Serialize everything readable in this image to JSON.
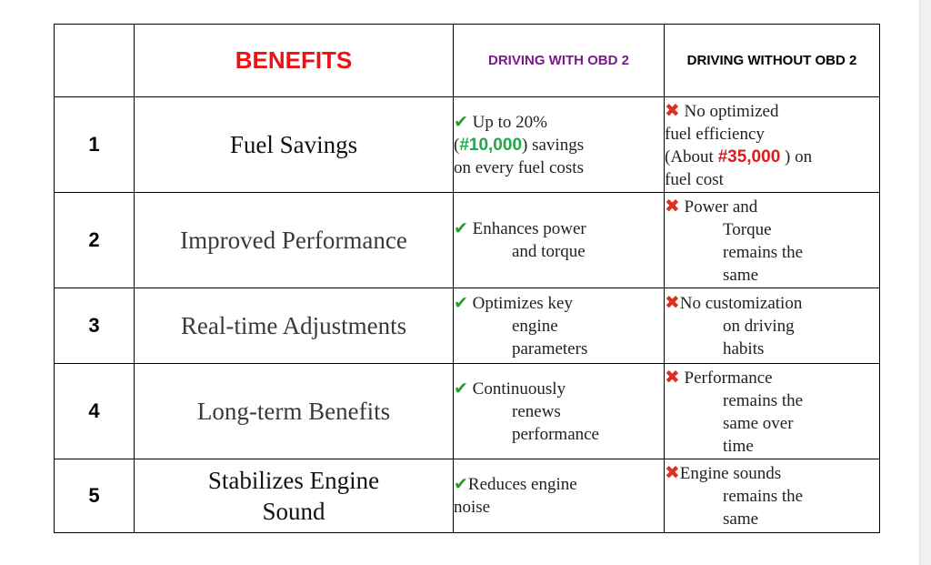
{
  "header": {
    "benefits": "BENEFITS",
    "with_obd": "DRIVING WITH OBD 2",
    "without_obd": "DRIVING WITHOUT OBD 2"
  },
  "icons": {
    "check": "✔",
    "cross": "✖"
  },
  "colors": {
    "check": "#2a9d2a",
    "cross": "#d9321e",
    "benefits_header": "#ee1111",
    "with_header": "#7a1a8c",
    "highlight_green": "#22a84a",
    "highlight_red": "#e01a1a"
  },
  "rows": [
    {
      "num": "1",
      "benefit": "Fuel Savings",
      "with_pre": "Up to 20%",
      "with_open": "(",
      "with_hl": "#10,000",
      "with_post": ") savings",
      "with_line3": "on every fuel costs",
      "without_l1": "No optimized",
      "without_l2": "fuel efficiency",
      "without_l3_pre": "(About ",
      "without_hl": "#35,000",
      "without_l3_post": " ) on",
      "without_l4": "fuel cost"
    },
    {
      "num": "2",
      "benefit": "Improved Performance",
      "with_l1": "Enhances power",
      "with_l2": "and torque",
      "without_l1": "Power and",
      "without_l2": "Torque",
      "without_l3": "remains the",
      "without_l4": "same"
    },
    {
      "num": "3",
      "benefit": "Real-time Adjustments",
      "with_l1": "Optimizes key",
      "with_l2": "engine",
      "with_l3": "parameters",
      "without_l1": "No customization",
      "without_l2": "on driving",
      "without_l3": "habits"
    },
    {
      "num": "4",
      "benefit": "Long-term Benefits",
      "with_l1": "Continuously",
      "with_l2": "renews",
      "with_l3": "performance",
      "without_l1": "Performance",
      "without_l2": "remains the",
      "without_l3": "same over",
      "without_l4": "time"
    },
    {
      "num": "5",
      "benefit_l1": "Stabilizes Engine",
      "benefit_l2": "Sound",
      "with_l1": "Reduces engine",
      "with_l2": "noise",
      "without_l1": "Engine sounds",
      "without_l2": "remains the",
      "without_l3": "same"
    }
  ]
}
